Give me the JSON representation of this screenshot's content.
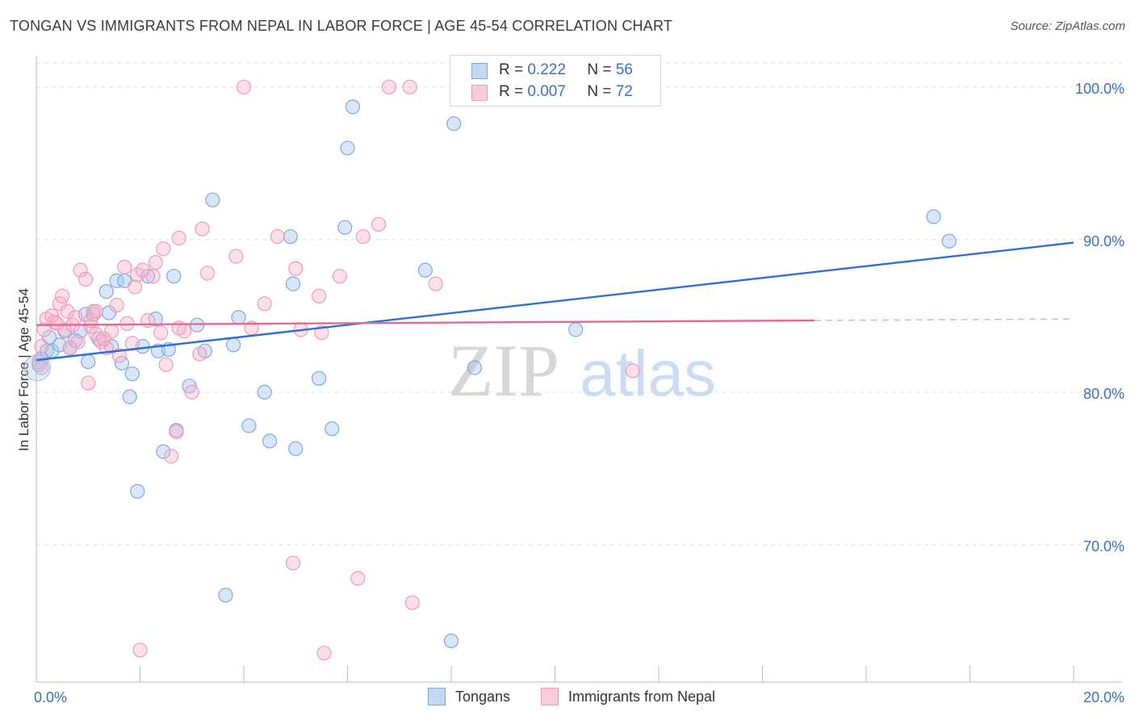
{
  "chart_data": {
    "type": "scatter",
    "title": "TONGAN VS IMMIGRANTS FROM NEPAL IN LABOR FORCE | AGE 45-54 CORRELATION CHART",
    "source": "Source: ZipAtlas.com",
    "xlabel": "",
    "ylabel": "In Labor Force | Age 45-54",
    "xlim": [
      0,
      20
    ],
    "ylim": [
      61,
      102
    ],
    "x_tick_labels": [
      "0.0%",
      "20.0%"
    ],
    "y_ticks": [
      70,
      80,
      90,
      100
    ],
    "y_tick_labels": [
      "70.0%",
      "80.0%",
      "90.0%",
      "100.0%"
    ],
    "grid": true,
    "watermark": {
      "zip": "ZIP",
      "atlas": "atlas"
    },
    "legend": {
      "r_label": "R =",
      "n_label": "N =",
      "entries": [
        {
          "r": "0.222",
          "n": "56"
        },
        {
          "r": "0.007",
          "n": "72"
        }
      ]
    },
    "series": [
      {
        "name": "Tongans",
        "color": "#9bbfea",
        "line_color": "#2f6fcf",
        "trend": {
          "x": [
            0,
            20
          ],
          "y": [
            82.1,
            89.8
          ]
        },
        "points": [
          [
            0.1,
            82.2
          ],
          [
            0.2,
            82.7
          ],
          [
            0.25,
            83.6
          ],
          [
            0.3,
            82.7
          ],
          [
            0.45,
            83.1
          ],
          [
            0.55,
            84.0
          ],
          [
            0.65,
            82.9
          ],
          [
            0.75,
            83.4
          ],
          [
            0.85,
            84.0
          ],
          [
            0.95,
            85.1
          ],
          [
            1.0,
            82.0
          ],
          [
            1.1,
            85.1
          ],
          [
            1.2,
            83.5
          ],
          [
            1.35,
            86.6
          ],
          [
            1.45,
            83.0
          ],
          [
            1.55,
            87.3
          ],
          [
            1.65,
            81.9
          ],
          [
            1.7,
            87.3
          ],
          [
            1.8,
            79.7
          ],
          [
            1.85,
            81.2
          ],
          [
            1.95,
            73.5
          ],
          [
            2.05,
            83.0
          ],
          [
            2.15,
            87.6
          ],
          [
            2.3,
            84.8
          ],
          [
            2.35,
            82.7
          ],
          [
            2.45,
            76.1
          ],
          [
            2.55,
            82.8
          ],
          [
            2.65,
            87.6
          ],
          [
            2.7,
            77.5
          ],
          [
            2.95,
            80.4
          ],
          [
            3.1,
            84.4
          ],
          [
            3.25,
            82.7
          ],
          [
            3.4,
            92.6
          ],
          [
            3.65,
            66.7
          ],
          [
            3.8,
            83.1
          ],
          [
            3.9,
            84.9
          ],
          [
            4.1,
            77.8
          ],
          [
            4.4,
            80.0
          ],
          [
            4.5,
            76.8
          ],
          [
            4.9,
            90.2
          ],
          [
            4.95,
            87.1
          ],
          [
            5.0,
            76.3
          ],
          [
            5.45,
            80.9
          ],
          [
            5.7,
            77.6
          ],
          [
            5.95,
            90.8
          ],
          [
            6.0,
            96.0
          ],
          [
            6.1,
            98.7
          ],
          [
            7.5,
            88.0
          ],
          [
            8.0,
            63.7
          ],
          [
            8.05,
            97.6
          ],
          [
            8.45,
            81.6
          ],
          [
            10.4,
            84.1
          ],
          [
            17.3,
            91.5
          ],
          [
            17.6,
            89.9
          ],
          [
            0.05,
            81.8
          ],
          [
            1.4,
            85.2
          ]
        ]
      },
      {
        "name": "Immigrants from Nepal",
        "color": "#f4aac2",
        "line_color": "#e26a92",
        "trend": {
          "x": [
            0,
            15
          ],
          "y": [
            84.4,
            84.7
          ]
        },
        "trend_dash": {
          "x": [
            15,
            20
          ],
          "y": [
            84.7,
            84.8
          ]
        },
        "points": [
          [
            0.05,
            82.0
          ],
          [
            0.1,
            83.0
          ],
          [
            0.15,
            84.1
          ],
          [
            0.2,
            84.8
          ],
          [
            0.3,
            85.0
          ],
          [
            0.35,
            84.6
          ],
          [
            0.45,
            85.8
          ],
          [
            0.5,
            86.3
          ],
          [
            0.55,
            84.1
          ],
          [
            0.6,
            85.3
          ],
          [
            0.7,
            84.4
          ],
          [
            0.75,
            84.9
          ],
          [
            0.8,
            83.3
          ],
          [
            0.85,
            88.0
          ],
          [
            0.95,
            87.4
          ],
          [
            1.0,
            80.6
          ],
          [
            1.05,
            84.3
          ],
          [
            1.1,
            85.3
          ],
          [
            1.15,
            83.8
          ],
          [
            1.25,
            83.3
          ],
          [
            1.35,
            82.9
          ],
          [
            1.45,
            84.0
          ],
          [
            1.55,
            85.7
          ],
          [
            1.6,
            82.4
          ],
          [
            1.7,
            88.2
          ],
          [
            1.75,
            84.5
          ],
          [
            1.85,
            83.2
          ],
          [
            1.9,
            86.9
          ],
          [
            1.95,
            87.7
          ],
          [
            2.05,
            88.0
          ],
          [
            2.15,
            84.7
          ],
          [
            2.25,
            87.6
          ],
          [
            2.3,
            88.5
          ],
          [
            2.4,
            83.9
          ],
          [
            2.45,
            89.4
          ],
          [
            2.5,
            81.8
          ],
          [
            2.6,
            75.8
          ],
          [
            2.7,
            77.4
          ],
          [
            2.75,
            90.1
          ],
          [
            2.85,
            84.0
          ],
          [
            3.0,
            80.0
          ],
          [
            3.15,
            82.5
          ],
          [
            3.2,
            90.7
          ],
          [
            3.3,
            87.8
          ],
          [
            3.85,
            88.9
          ],
          [
            4.0,
            100.0
          ],
          [
            4.15,
            84.2
          ],
          [
            4.4,
            85.8
          ],
          [
            4.65,
            90.2
          ],
          [
            4.95,
            68.8
          ],
          [
            5.0,
            88.1
          ],
          [
            5.1,
            84.1
          ],
          [
            5.45,
            86.3
          ],
          [
            5.5,
            83.9
          ],
          [
            5.55,
            62.9
          ],
          [
            5.85,
            87.6
          ],
          [
            6.2,
            67.8
          ],
          [
            6.3,
            90.2
          ],
          [
            6.6,
            91.0
          ],
          [
            6.8,
            100.0
          ],
          [
            7.2,
            100.0
          ],
          [
            7.25,
            66.2
          ],
          [
            7.7,
            87.1
          ],
          [
            11.5,
            81.4
          ],
          [
            0.1,
            81.6
          ],
          [
            1.3,
            83.5
          ],
          [
            2.0,
            63.1
          ],
          [
            0.4,
            84.5
          ],
          [
            1.05,
            84.7
          ],
          [
            0.65,
            82.9
          ],
          [
            1.15,
            85.3
          ],
          [
            2.75,
            84.2
          ]
        ]
      }
    ]
  }
}
